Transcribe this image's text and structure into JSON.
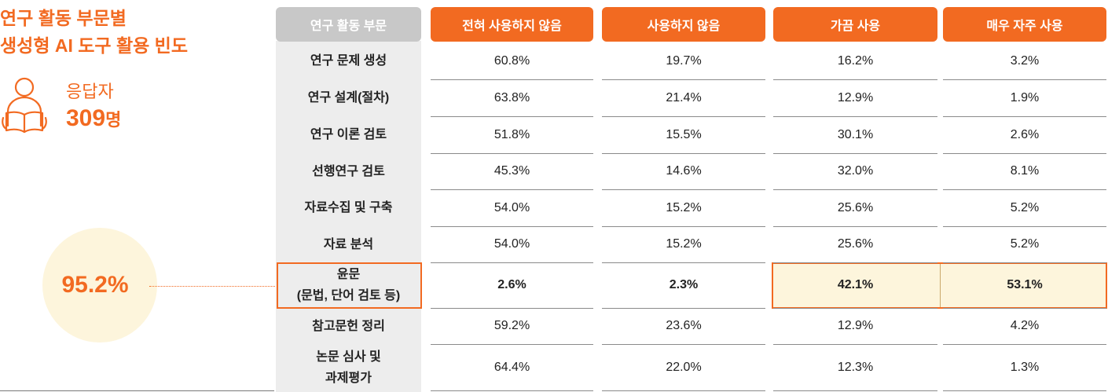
{
  "title_lines": [
    "연구 활동 부문별",
    "생성형 AI 도구 활용 빈도"
  ],
  "respondents": {
    "label": "응답자",
    "count": "309",
    "unit": "명"
  },
  "highlight": {
    "value": "95.2%",
    "row_index": 6
  },
  "colors": {
    "accent": "#f26a21",
    "highlight_bg": "#fdf5dc",
    "label_column_bg": "#ededed",
    "header_gray": "#c8c8c8"
  },
  "icon": "reading-person-icon",
  "chart_data": {
    "type": "table",
    "columns": [
      "연구 활동 부문",
      "전혀 사용하지 않음",
      "사용하지 않음",
      "가끔 사용",
      "매우 자주 사용"
    ],
    "rows": [
      {
        "label": [
          "연구 문제 생성"
        ],
        "values": [
          "60.8%",
          "19.7%",
          "16.2%",
          "3.2%"
        ]
      },
      {
        "label": [
          "연구 설계(절차)"
        ],
        "values": [
          "63.8%",
          "21.4%",
          "12.9%",
          "1.9%"
        ]
      },
      {
        "label": [
          "연구 이론 검토"
        ],
        "values": [
          "51.8%",
          "15.5%",
          "30.1%",
          "2.6%"
        ]
      },
      {
        "label": [
          "선행연구 검토"
        ],
        "values": [
          "45.3%",
          "14.6%",
          "32.0%",
          "8.1%"
        ]
      },
      {
        "label": [
          "자료수집 및 구축"
        ],
        "values": [
          "54.0%",
          "15.2%",
          "25.6%",
          "5.2%"
        ]
      },
      {
        "label": [
          "자료 분석"
        ],
        "values": [
          "54.0%",
          "15.2%",
          "25.6%",
          "5.2%"
        ]
      },
      {
        "label": [
          "윤문",
          "(문법, 단어 검토 등)"
        ],
        "values": [
          "2.6%",
          "2.3%",
          "42.1%",
          "53.1%"
        ]
      },
      {
        "label": [
          "참고문헌 정리"
        ],
        "values": [
          "59.2%",
          "23.6%",
          "12.9%",
          "4.2%"
        ]
      },
      {
        "label": [
          "논문 심사 및",
          "과제평가"
        ],
        "values": [
          "64.4%",
          "22.0%",
          "12.3%",
          "1.3%"
        ]
      }
    ]
  }
}
